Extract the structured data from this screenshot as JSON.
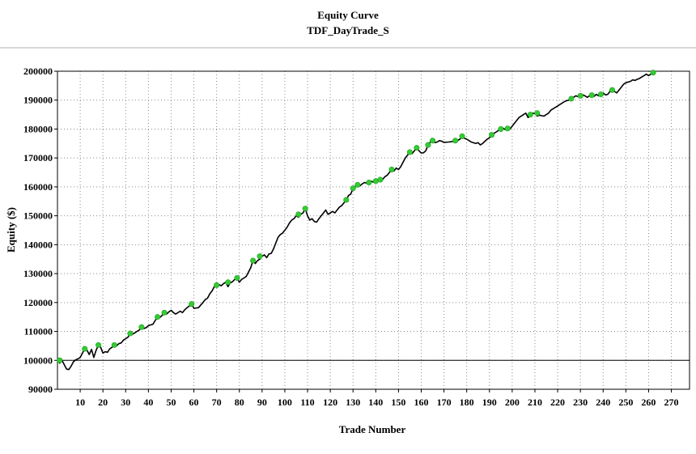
{
  "chart_data": {
    "type": "line",
    "title": "Equity Curve",
    "subtitle": "TDF_DayTrade_S",
    "xlabel": "Trade Number",
    "ylabel": "Equity ($)",
    "xlim": [
      0,
      278
    ],
    "ylim": [
      90000,
      200000
    ],
    "xticks": [
      10,
      20,
      30,
      40,
      50,
      60,
      70,
      80,
      90,
      100,
      110,
      120,
      130,
      140,
      150,
      160,
      170,
      180,
      190,
      200,
      210,
      220,
      230,
      240,
      250,
      260,
      270
    ],
    "yticks": [
      90000,
      100000,
      110000,
      120000,
      130000,
      140000,
      150000,
      160000,
      170000,
      180000,
      190000,
      200000
    ],
    "baseline": 100000,
    "grid": true,
    "colors": {
      "line": "#000000",
      "highs": "#33cc33",
      "grid": "#8a8a8a"
    },
    "series": [
      {
        "values": [
          [
            0,
            100000
          ],
          [
            1,
            99000
          ],
          [
            2,
            100000
          ],
          [
            4,
            97000
          ],
          [
            5,
            96800
          ],
          [
            6,
            98000
          ],
          [
            7,
            99500
          ],
          [
            8,
            100200
          ],
          [
            9,
            100500
          ],
          [
            10,
            101000
          ],
          [
            11,
            102500
          ],
          [
            12,
            104000
          ],
          [
            13,
            103500
          ],
          [
            14,
            102000
          ],
          [
            15,
            103800
          ],
          [
            16,
            101000
          ],
          [
            17,
            103500
          ],
          [
            18,
            105300
          ],
          [
            19,
            104500
          ],
          [
            20,
            102500
          ],
          [
            21,
            103000
          ],
          [
            22,
            102800
          ],
          [
            23,
            104000
          ],
          [
            24,
            104500
          ],
          [
            25,
            105300
          ],
          [
            26,
            105000
          ],
          [
            27,
            105800
          ],
          [
            28,
            106000
          ],
          [
            29,
            107000
          ],
          [
            30,
            107500
          ],
          [
            31,
            108000
          ],
          [
            32,
            109300
          ],
          [
            33,
            109000
          ],
          [
            34,
            109500
          ],
          [
            35,
            110000
          ],
          [
            36,
            110500
          ],
          [
            37,
            111500
          ],
          [
            38,
            111000
          ],
          [
            39,
            111300
          ],
          [
            40,
            112000
          ],
          [
            42,
            112500
          ],
          [
            43,
            113800
          ],
          [
            44,
            115000
          ],
          [
            45,
            114800
          ],
          [
            46,
            115500
          ],
          [
            47,
            116500
          ],
          [
            48,
            116000
          ],
          [
            49,
            116800
          ],
          [
            50,
            117300
          ],
          [
            51,
            116500
          ],
          [
            52,
            116000
          ],
          [
            54,
            117000
          ],
          [
            55,
            116500
          ],
          [
            56,
            117500
          ],
          [
            57,
            118200
          ],
          [
            58,
            118800
          ],
          [
            59,
            119500
          ],
          [
            60,
            118000
          ],
          [
            62,
            118200
          ],
          [
            64,
            120000
          ],
          [
            65,
            121000
          ],
          [
            66,
            121500
          ],
          [
            67,
            123000
          ],
          [
            68,
            124000
          ],
          [
            69,
            125500
          ],
          [
            70,
            126000
          ],
          [
            71,
            126200
          ],
          [
            72,
            125800
          ],
          [
            73,
            126500
          ],
          [
            74,
            127000
          ],
          [
            75,
            125500
          ],
          [
            76,
            126800
          ],
          [
            77,
            127200
          ],
          [
            78,
            128000
          ],
          [
            79,
            128500
          ],
          [
            80,
            127000
          ],
          [
            81,
            128000
          ],
          [
            82,
            128500
          ],
          [
            83,
            129000
          ],
          [
            84,
            130500
          ],
          [
            85,
            132000
          ],
          [
            86,
            134500
          ],
          [
            87,
            133500
          ],
          [
            88,
            134500
          ],
          [
            89,
            135000
          ],
          [
            90,
            136000
          ],
          [
            91,
            136500
          ],
          [
            92,
            135500
          ],
          [
            93,
            136800
          ],
          [
            94,
            137000
          ],
          [
            95,
            138500
          ],
          [
            96,
            140500
          ],
          [
            97,
            142500
          ],
          [
            98,
            143500
          ],
          [
            99,
            144000
          ],
          [
            100,
            145000
          ],
          [
            101,
            146000
          ],
          [
            102,
            147500
          ],
          [
            103,
            148500
          ],
          [
            104,
            149000
          ],
          [
            105,
            150000
          ],
          [
            106,
            149500
          ],
          [
            107,
            150500
          ],
          [
            108,
            151000
          ],
          [
            109,
            152500
          ],
          [
            110,
            150000
          ],
          [
            111,
            148500
          ],
          [
            112,
            149000
          ],
          [
            113,
            148000
          ],
          [
            114,
            147800
          ],
          [
            115,
            149000
          ],
          [
            116,
            150000
          ],
          [
            117,
            151000
          ],
          [
            118,
            152000
          ],
          [
            119,
            150500
          ],
          [
            120,
            151000
          ],
          [
            121,
            151500
          ],
          [
            122,
            151000
          ],
          [
            123,
            152000
          ],
          [
            124,
            153000
          ],
          [
            125,
            153500
          ],
          [
            126,
            154500
          ],
          [
            127,
            155500
          ],
          [
            128,
            157000
          ],
          [
            129,
            157500
          ],
          [
            130,
            159500
          ],
          [
            131,
            160200
          ],
          [
            132,
            160700
          ],
          [
            133,
            160300
          ],
          [
            134,
            161000
          ],
          [
            135,
            161500
          ],
          [
            136,
            161300
          ],
          [
            137,
            161500
          ],
          [
            138,
            162000
          ],
          [
            139,
            161600
          ],
          [
            140,
            162000
          ],
          [
            141,
            162500
          ],
          [
            142,
            161800
          ],
          [
            143,
            162500
          ],
          [
            144,
            163500
          ],
          [
            145,
            164000
          ],
          [
            146,
            165000
          ],
          [
            147,
            166000
          ],
          [
            148,
            165500
          ],
          [
            149,
            166500
          ],
          [
            150,
            166000
          ],
          [
            151,
            167000
          ],
          [
            152,
            168500
          ],
          [
            153,
            170000
          ],
          [
            154,
            171000
          ],
          [
            155,
            172000
          ],
          [
            156,
            171500
          ],
          [
            157,
            172500
          ],
          [
            158,
            173500
          ],
          [
            159,
            172500
          ],
          [
            160,
            171700
          ],
          [
            161,
            171800
          ],
          [
            162,
            172500
          ],
          [
            163,
            174500
          ],
          [
            164,
            175500
          ],
          [
            165,
            176000
          ],
          [
            166,
            175300
          ],
          [
            167,
            175500
          ],
          [
            168,
            176000
          ],
          [
            169,
            175800
          ],
          [
            170,
            175400
          ],
          [
            172,
            175500
          ],
          [
            174,
            175700
          ],
          [
            176,
            176000
          ],
          [
            177,
            176500
          ],
          [
            178,
            177500
          ],
          [
            179,
            176800
          ],
          [
            180,
            176500
          ],
          [
            181,
            176000
          ],
          [
            182,
            175500
          ],
          [
            184,
            175000
          ],
          [
            185,
            175300
          ],
          [
            186,
            174500
          ],
          [
            187,
            175000
          ],
          [
            188,
            175800
          ],
          [
            189,
            176500
          ],
          [
            190,
            177000
          ],
          [
            191,
            178000
          ],
          [
            192,
            178500
          ],
          [
            193,
            179000
          ],
          [
            194,
            179500
          ],
          [
            195,
            180000
          ],
          [
            196,
            180300
          ],
          [
            197,
            179800
          ],
          [
            198,
            180200
          ],
          [
            199,
            180000
          ],
          [
            200,
            181000
          ],
          [
            201,
            182000
          ],
          [
            202,
            183000
          ],
          [
            203,
            184000
          ],
          [
            204,
            184500
          ],
          [
            205,
            185000
          ],
          [
            206,
            185500
          ],
          [
            207,
            184000
          ],
          [
            208,
            184500
          ],
          [
            209,
            185500
          ],
          [
            210,
            185300
          ],
          [
            211,
            184500
          ],
          [
            212,
            184800
          ],
          [
            213,
            184600
          ],
          [
            214,
            184500
          ],
          [
            215,
            185000
          ],
          [
            216,
            185500
          ],
          [
            217,
            186500
          ],
          [
            218,
            187000
          ],
          [
            219,
            187500
          ],
          [
            220,
            188000
          ],
          [
            221,
            188500
          ],
          [
            222,
            189000
          ],
          [
            223,
            189500
          ],
          [
            224,
            189800
          ],
          [
            225,
            190000
          ],
          [
            226,
            190500
          ],
          [
            227,
            191000
          ],
          [
            228,
            191500
          ],
          [
            229,
            191200
          ],
          [
            230,
            191400
          ],
          [
            231,
            191800
          ],
          [
            232,
            191500
          ],
          [
            233,
            191000
          ],
          [
            234,
            191500
          ],
          [
            235,
            191700
          ],
          [
            236,
            191300
          ],
          [
            237,
            192000
          ],
          [
            238,
            191500
          ],
          [
            239,
            192000
          ],
          [
            240,
            192500
          ],
          [
            241,
            191800
          ],
          [
            242,
            192000
          ],
          [
            243,
            193000
          ],
          [
            244,
            193500
          ],
          [
            245,
            193000
          ],
          [
            246,
            192500
          ],
          [
            247,
            193500
          ],
          [
            248,
            194500
          ],
          [
            249,
            195500
          ],
          [
            250,
            196000
          ],
          [
            252,
            196500
          ],
          [
            253,
            197000
          ],
          [
            254,
            196800
          ],
          [
            255,
            197200
          ],
          [
            256,
            197500
          ],
          [
            257,
            198000
          ],
          [
            258,
            198500
          ],
          [
            259,
            199000
          ],
          [
            260,
            198500
          ],
          [
            261,
            199000
          ],
          [
            262,
            199500
          ]
        ]
      }
    ],
    "new_highs": [
      [
        1,
        100000
      ],
      [
        12,
        104000
      ],
      [
        18,
        105300
      ],
      [
        25,
        105300
      ],
      [
        32,
        109300
      ],
      [
        37,
        111500
      ],
      [
        44,
        115000
      ],
      [
        47,
        116500
      ],
      [
        59,
        119500
      ],
      [
        70,
        126000
      ],
      [
        75,
        127000
      ],
      [
        79,
        128500
      ],
      [
        86,
        134500
      ],
      [
        89,
        136000
      ],
      [
        106,
        150500
      ],
      [
        109,
        152500
      ],
      [
        127,
        155500
      ],
      [
        130,
        159500
      ],
      [
        132,
        160700
      ],
      [
        137,
        161500
      ],
      [
        140,
        162000
      ],
      [
        142,
        162500
      ],
      [
        147,
        166000
      ],
      [
        155,
        172000
      ],
      [
        158,
        173500
      ],
      [
        163,
        174500
      ],
      [
        165,
        176000
      ],
      [
        175,
        176000
      ],
      [
        178,
        177500
      ],
      [
        191,
        178000
      ],
      [
        195,
        180000
      ],
      [
        198,
        180200
      ],
      [
        208,
        185000
      ],
      [
        211,
        185500
      ],
      [
        226,
        190500
      ],
      [
        230,
        191500
      ],
      [
        235,
        191700
      ],
      [
        239,
        192000
      ],
      [
        244,
        193500
      ],
      [
        262,
        199500
      ]
    ]
  }
}
